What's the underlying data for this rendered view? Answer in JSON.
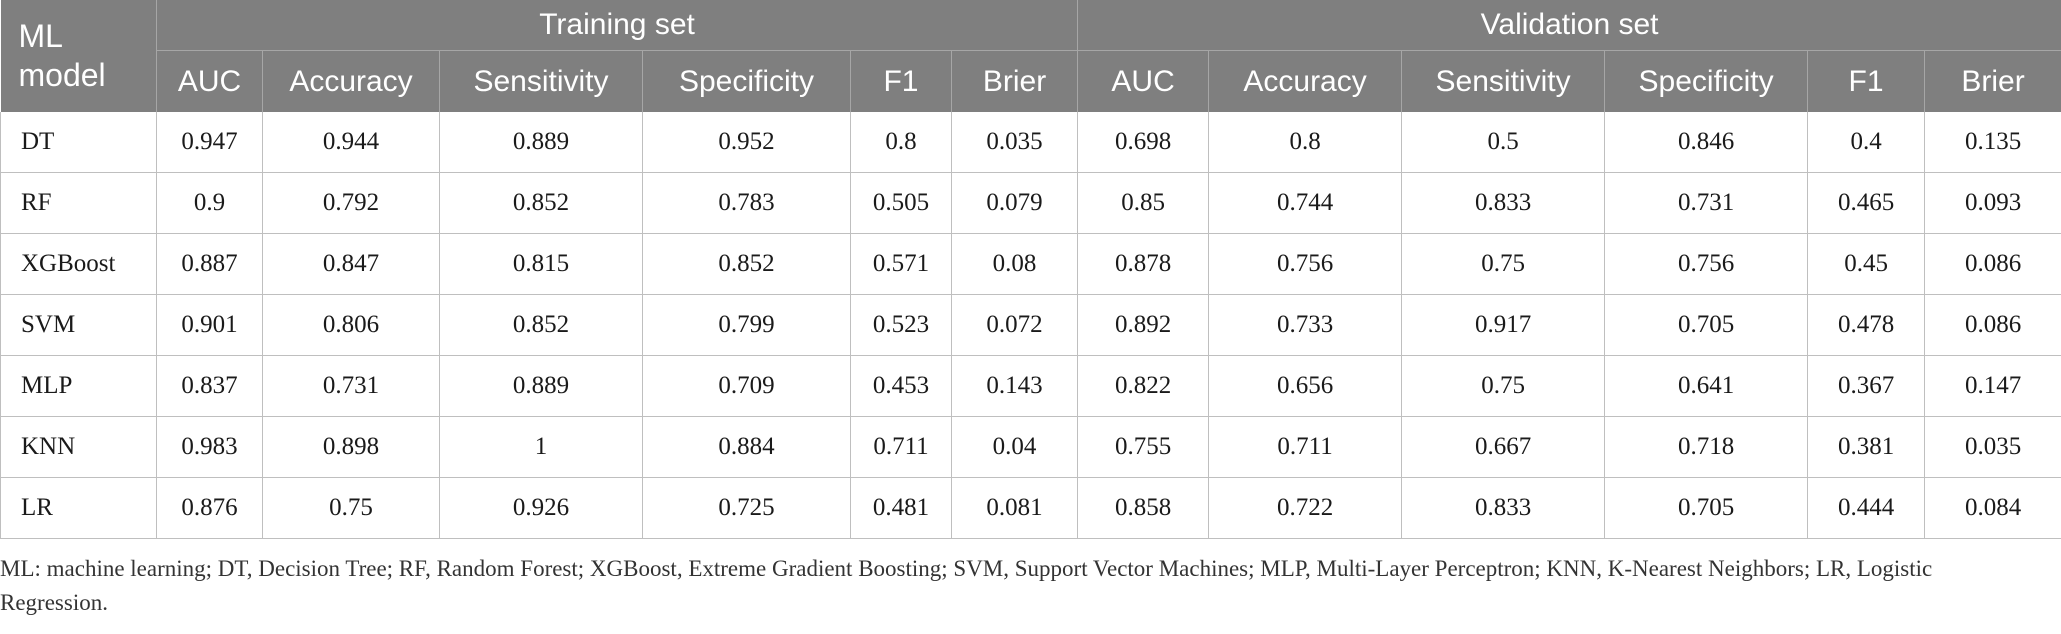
{
  "table": {
    "corner_header": "ML\nmodel",
    "groups": [
      {
        "label": "Training set"
      },
      {
        "label": "Validation set"
      }
    ],
    "metrics": [
      "AUC",
      "Accuracy",
      "Sensitivity",
      "Specificity",
      "F1",
      "Brier"
    ],
    "rows": [
      {
        "model": "DT",
        "values": [
          "0.947",
          "0.944",
          "0.889",
          "0.952",
          "0.8",
          "0.035",
          "0.698",
          "0.8",
          "0.5",
          "0.846",
          "0.4",
          "0.135"
        ]
      },
      {
        "model": "RF",
        "values": [
          "0.9",
          "0.792",
          "0.852",
          "0.783",
          "0.505",
          "0.079",
          "0.85",
          "0.744",
          "0.833",
          "0.731",
          "0.465",
          "0.093"
        ]
      },
      {
        "model": "XGBoost",
        "values": [
          "0.887",
          "0.847",
          "0.815",
          "0.852",
          "0.571",
          "0.08",
          "0.878",
          "0.756",
          "0.75",
          "0.756",
          "0.45",
          "0.086"
        ]
      },
      {
        "model": "SVM",
        "values": [
          "0.901",
          "0.806",
          "0.852",
          "0.799",
          "0.523",
          "0.072",
          "0.892",
          "0.733",
          "0.917",
          "0.705",
          "0.478",
          "0.086"
        ]
      },
      {
        "model": "MLP",
        "values": [
          "0.837",
          "0.731",
          "0.889",
          "0.709",
          "0.453",
          "0.143",
          "0.822",
          "0.656",
          "0.75",
          "0.641",
          "0.367",
          "0.147"
        ]
      },
      {
        "model": "KNN",
        "values": [
          "0.983",
          "0.898",
          "1",
          "0.884",
          "0.711",
          "0.04",
          "0.755",
          "0.711",
          "0.667",
          "0.718",
          "0.381",
          "0.035"
        ]
      },
      {
        "model": "LR",
        "values": [
          "0.876",
          "0.75",
          "0.926",
          "0.725",
          "0.481",
          "0.081",
          "0.858",
          "0.722",
          "0.833",
          "0.705",
          "0.444",
          "0.084"
        ]
      }
    ]
  },
  "footnote": "ML: machine learning; DT, Decision Tree; RF, Random Forest; XGBoost, Extreme Gradient Boosting; SVM, Support Vector Machines; MLP, Multi-Layer Perceptron; KNN, K-Nearest Neighbors; LR, Logistic Regression.",
  "colors": {
    "header_bg": "#7f7f7f",
    "header_text": "#ffffff",
    "grid_line": "#bfbfbf"
  }
}
